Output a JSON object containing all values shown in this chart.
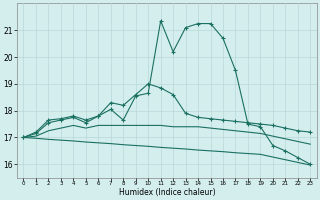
{
  "xlabel": "Humidex (Indice chaleur)",
  "x": [
    0,
    1,
    2,
    3,
    4,
    5,
    6,
    7,
    8,
    9,
    10,
    11,
    12,
    13,
    14,
    15,
    16,
    17,
    18,
    19,
    20,
    21,
    22,
    23
  ],
  "line1": [
    17.0,
    17.15,
    17.55,
    17.65,
    17.75,
    17.55,
    17.8,
    18.05,
    17.65,
    18.55,
    18.65,
    21.35,
    20.2,
    21.1,
    21.25,
    21.25,
    20.7,
    19.5,
    17.5,
    17.4,
    16.7,
    16.5,
    16.25,
    16.0
  ],
  "line2": [
    17.0,
    17.2,
    17.65,
    17.7,
    17.8,
    17.65,
    17.8,
    18.3,
    18.2,
    18.6,
    19.0,
    18.85,
    18.6,
    17.9,
    17.75,
    17.7,
    17.65,
    17.6,
    17.55,
    17.5,
    17.45,
    17.35,
    17.25,
    17.2
  ],
  "line3": [
    17.0,
    17.05,
    17.25,
    17.35,
    17.45,
    17.35,
    17.45,
    17.45,
    17.45,
    17.45,
    17.45,
    17.45,
    17.4,
    17.4,
    17.4,
    17.35,
    17.3,
    17.25,
    17.2,
    17.15,
    17.05,
    16.95,
    16.85,
    16.75
  ],
  "line4": [
    17.0,
    16.97,
    16.93,
    16.9,
    16.87,
    16.83,
    16.8,
    16.77,
    16.73,
    16.7,
    16.67,
    16.63,
    16.6,
    16.57,
    16.53,
    16.5,
    16.47,
    16.43,
    16.4,
    16.37,
    16.27,
    16.17,
    16.07,
    15.97
  ],
  "line_color": "#1a7060",
  "bg_color": "#d4eeee",
  "grid_color": "#b8d8d8",
  "ylim": [
    15.5,
    22.0
  ],
  "xlim": [
    -0.5,
    23.5
  ],
  "yticks": [
    16,
    17,
    18,
    19,
    20,
    21
  ]
}
